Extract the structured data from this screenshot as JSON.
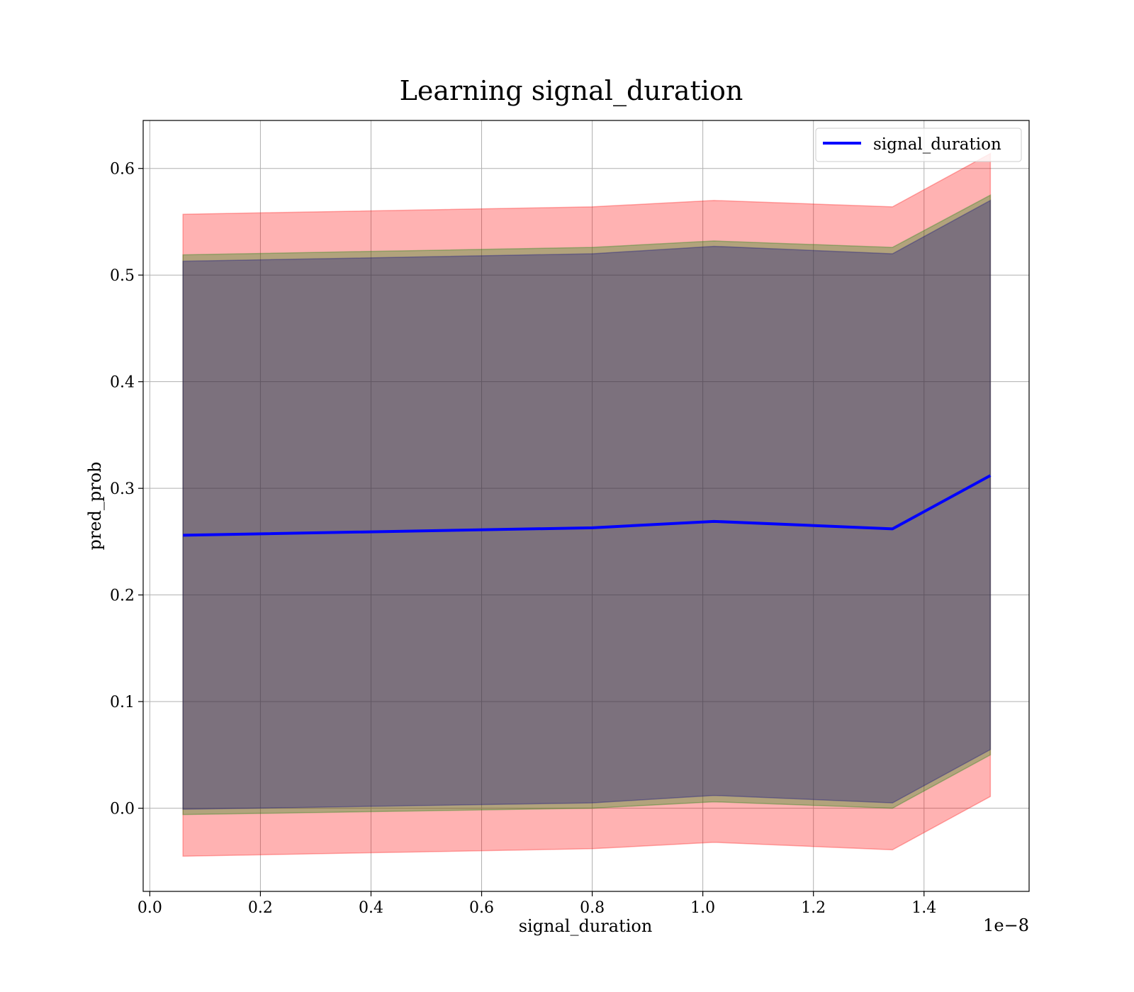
{
  "chart_data": {
    "type": "line",
    "title": "Learning signal_duration",
    "xlabel": "signal_duration",
    "ylabel": "pred_prob",
    "x_offset_label": "1e−8",
    "x_scale_exponent": -8,
    "xlim": [
      -0.012,
      1.59
    ],
    "ylim": [
      -0.078,
      0.645
    ],
    "grid": true,
    "legend_position": "top-right",
    "x_ticks": [
      0.0,
      0.2,
      0.4,
      0.6,
      0.8,
      1.0,
      1.2,
      1.4
    ],
    "x_tick_labels": [
      "0.0",
      "0.2",
      "0.4",
      "0.6",
      "0.8",
      "1.0",
      "1.2",
      "1.4"
    ],
    "y_ticks": [
      0.0,
      0.1,
      0.2,
      0.3,
      0.4,
      0.5,
      0.6
    ],
    "y_tick_labels": [
      "0.0",
      "0.1",
      "0.2",
      "0.3",
      "0.4",
      "0.5",
      "0.6"
    ],
    "x": [
      0.06,
      0.8,
      1.02,
      1.343,
      1.52
    ],
    "series": [
      {
        "name": "signal_duration",
        "color": "#0000ff",
        "values": [
          0.256,
          0.263,
          0.269,
          0.262,
          0.312
        ]
      }
    ],
    "bands": [
      {
        "color": "#ff0000",
        "opacity": 0.3,
        "upper": [
          0.557,
          0.564,
          0.57,
          0.564,
          0.614
        ],
        "lower": [
          -0.045,
          -0.038,
          -0.032,
          -0.039,
          0.011
        ]
      },
      {
        "color": "#008000",
        "opacity": 0.3,
        "upper": [
          0.519,
          0.526,
          0.532,
          0.526,
          0.575
        ],
        "lower": [
          -0.006,
          0.0,
          0.006,
          0.0,
          0.05
        ]
      },
      {
        "color": "#000080",
        "opacity": 0.3,
        "upper": [
          0.513,
          0.52,
          0.527,
          0.52,
          0.57
        ],
        "lower": [
          -0.001,
          0.005,
          0.012,
          0.005,
          0.055
        ]
      }
    ]
  }
}
